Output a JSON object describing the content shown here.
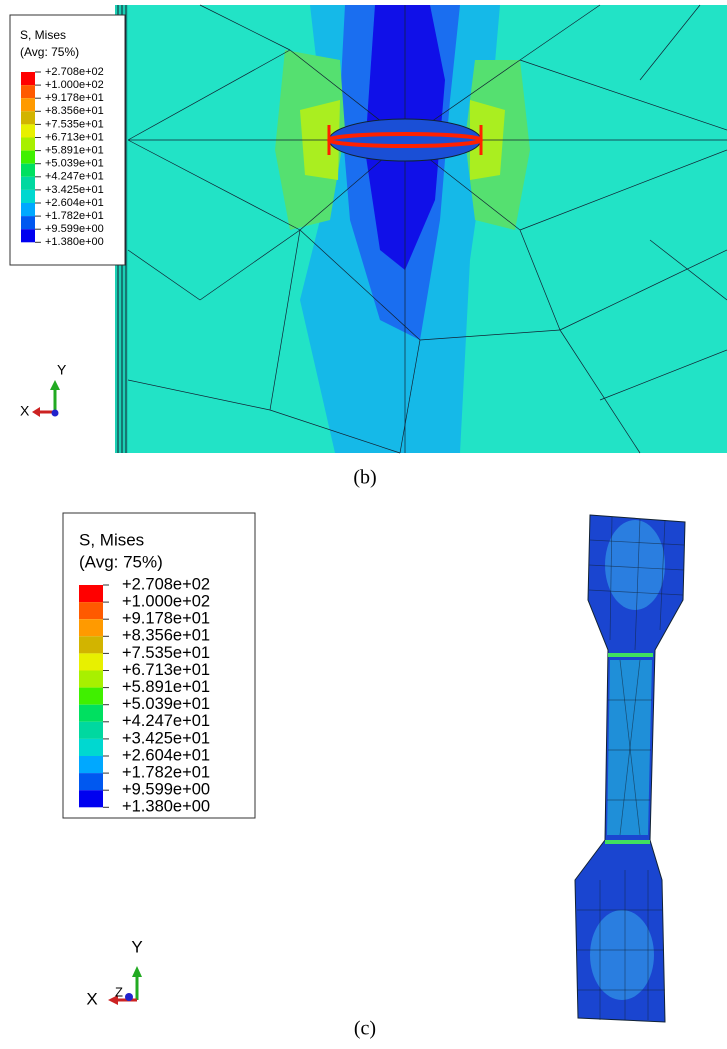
{
  "panels": [
    {
      "caption": "(b)",
      "legend": {
        "title": "S, Mises",
        "subtitle": "(Avg: 75%)",
        "values": [
          "+2.708e+02",
          "+1.000e+02",
          "+9.178e+01",
          "+8.356e+01",
          "+7.535e+01",
          "+6.713e+01",
          "+5.891e+01",
          "+5.039e+01",
          "+4.247e+01",
          "+3.425e+01",
          "+2.604e+01",
          "+1.782e+01",
          "+9.599e+00",
          "+1.380e+00"
        ]
      },
      "triad": {
        "x": "X",
        "y": "Y"
      }
    },
    {
      "caption": "(c)",
      "legend": {
        "title": "S, Mises",
        "subtitle": "(Avg: 75%)",
        "values": [
          "+2.708e+02",
          "+1.000e+02",
          "+9.178e+01",
          "+8.356e+01",
          "+7.535e+01",
          "+6.713e+01",
          "+5.891e+01",
          "+5.039e+01",
          "+4.247e+01",
          "+3.425e+01",
          "+2.604e+01",
          "+1.782e+01",
          "+9.599e+00",
          "+1.380e+00"
        ]
      },
      "triad": {
        "x": "X",
        "y": "Y",
        "z": "Z"
      }
    }
  ]
}
